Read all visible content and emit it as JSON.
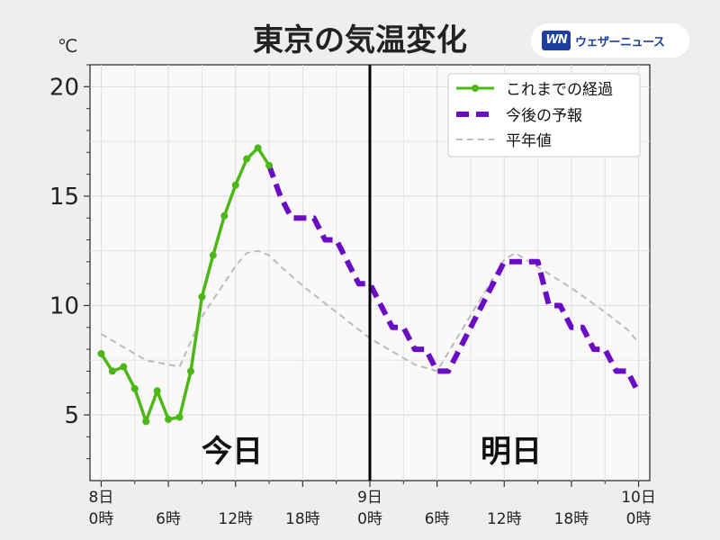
{
  "header": {
    "title": "東京の気温変化",
    "unit": "℃"
  },
  "brand": {
    "mark": "WN",
    "name": "ウェザーニュース",
    "color": "#1d3f9c"
  },
  "legend": {
    "observed": "これまでの経過",
    "forecast": "今後の予報",
    "normal": "平年値"
  },
  "day_labels": {
    "today": "今日",
    "tomorrow": "明日"
  },
  "chart_data": {
    "type": "line",
    "title": "東京の気温変化",
    "ylabel": "℃",
    "xlim": [
      -1,
      49
    ],
    "ylim": [
      2,
      21
    ],
    "yticks": [
      5,
      10,
      15,
      20
    ],
    "xticks": [
      {
        "x": 0,
        "line1": "8日",
        "line2": "0時"
      },
      {
        "x": 6,
        "line1": "",
        "line2": "6時"
      },
      {
        "x": 12,
        "line1": "",
        "line2": "12時"
      },
      {
        "x": 18,
        "line1": "",
        "line2": "18時"
      },
      {
        "x": 24,
        "line1": "9日",
        "line2": "0時"
      },
      {
        "x": 30,
        "line1": "",
        "line2": "6時"
      },
      {
        "x": 36,
        "line1": "",
        "line2": "12時"
      },
      {
        "x": 42,
        "line1": "",
        "line2": "18時"
      },
      {
        "x": 48,
        "line1": "10日",
        "line2": "0時"
      }
    ],
    "divider_x": 24,
    "grid": true,
    "legend_position": "top-right",
    "series": [
      {
        "name": "これまでの経過",
        "style": "solid-markers",
        "color": "#4cb816",
        "x": [
          0,
          1,
          2,
          3,
          4,
          5,
          6,
          7,
          8,
          9,
          10,
          11,
          12,
          13,
          14,
          15
        ],
        "y": [
          7.8,
          7.0,
          7.2,
          6.2,
          4.7,
          6.1,
          4.8,
          4.9,
          7.0,
          10.4,
          12.3,
          14.1,
          15.5,
          16.7,
          17.2,
          16.4
        ]
      },
      {
        "name": "今後の予報",
        "style": "dashed-step",
        "color": "#6a0cc4",
        "x": [
          15,
          16,
          17,
          18,
          19,
          20,
          21,
          22,
          23,
          24,
          25,
          26,
          27,
          28,
          29,
          30,
          31,
          32,
          33,
          34,
          35,
          36,
          37,
          38,
          39,
          40,
          41,
          42,
          43,
          44,
          45,
          46,
          47,
          48
        ],
        "y": [
          16.4,
          15.0,
          14.0,
          14.0,
          14.0,
          13.0,
          13.0,
          12.0,
          11.0,
          11.0,
          10.0,
          9.0,
          9.0,
          8.0,
          8.0,
          7.0,
          7.0,
          8.0,
          9.0,
          10.0,
          11.0,
          12.0,
          12.0,
          12.0,
          12.0,
          10.0,
          10.0,
          9.0,
          9.0,
          8.0,
          8.0,
          7.0,
          7.0,
          6.0
        ]
      },
      {
        "name": "平年値",
        "style": "dashed-thin",
        "color": "#bbbbbb",
        "x": [
          0,
          3,
          4,
          6,
          7,
          9,
          12,
          13,
          14,
          15,
          16,
          18,
          21,
          24,
          27,
          28,
          30,
          36,
          37,
          42,
          45,
          47,
          48
        ],
        "y": [
          8.7,
          7.8,
          7.5,
          7.3,
          7.2,
          9.5,
          11.8,
          12.4,
          12.5,
          12.3,
          11.8,
          10.9,
          9.7,
          8.5,
          7.6,
          7.3,
          7.0,
          12.1,
          12.4,
          10.8,
          9.7,
          8.9,
          8.3
        ]
      }
    ]
  }
}
